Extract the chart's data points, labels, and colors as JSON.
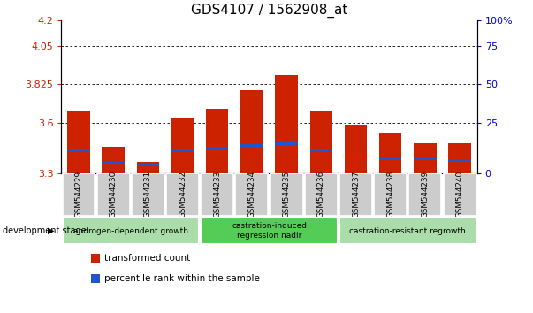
{
  "title": "GDS4107 / 1562908_at",
  "samples": [
    "GSM544229",
    "GSM544230",
    "GSM544231",
    "GSM544232",
    "GSM544233",
    "GSM544234",
    "GSM544235",
    "GSM544236",
    "GSM544237",
    "GSM544238",
    "GSM544239",
    "GSM544240"
  ],
  "bar_bottom": 3.3,
  "transformed_counts": [
    3.67,
    3.46,
    3.37,
    3.63,
    3.68,
    3.79,
    3.88,
    3.67,
    3.59,
    3.54,
    3.48,
    3.48
  ],
  "percentile_values": [
    3.43,
    3.36,
    3.35,
    3.43,
    3.44,
    3.46,
    3.47,
    3.43,
    3.4,
    3.38,
    3.38,
    3.37
  ],
  "percentile_heights": [
    0.012,
    0.012,
    0.012,
    0.012,
    0.012,
    0.012,
    0.012,
    0.012,
    0.012,
    0.012,
    0.012,
    0.012
  ],
  "ylim": [
    3.3,
    4.2
  ],
  "yticks_left": [
    3.3,
    3.6,
    3.825,
    4.05,
    4.2
  ],
  "yticks_right": [
    0,
    25,
    50,
    75,
    100
  ],
  "yticks_right_vals": [
    3.3,
    3.6,
    3.825,
    4.05,
    4.2
  ],
  "gridlines": [
    4.05,
    3.825,
    3.6
  ],
  "bar_color": "#cc2200",
  "percentile_color": "#2255cc",
  "bar_width": 0.65,
  "stage_groups": [
    {
      "label": "androgen-dependent growth",
      "start": 0,
      "end": 3,
      "color": "#aaddaa",
      "fontsize": 6.5
    },
    {
      "label": "castration-induced\nregression nadir",
      "start": 4,
      "end": 7,
      "color": "#55cc55",
      "fontsize": 6.5
    },
    {
      "label": "castration-resistant regrowth",
      "start": 8,
      "end": 11,
      "color": "#aaddaa",
      "fontsize": 6.5
    }
  ],
  "xlabel_left": "development stage",
  "legend_items": [
    {
      "label": "transformed count",
      "color": "#cc2200"
    },
    {
      "label": "percentile rank within the sample",
      "color": "#2255cc"
    }
  ],
  "background_color": "#ffffff",
  "plot_bg": "#ffffff",
  "tick_label_color_left": "#cc2200",
  "tick_label_color_right": "#0000cc",
  "title_fontsize": 11,
  "col_bg": "#cccccc",
  "col_edge": "#ffffff"
}
